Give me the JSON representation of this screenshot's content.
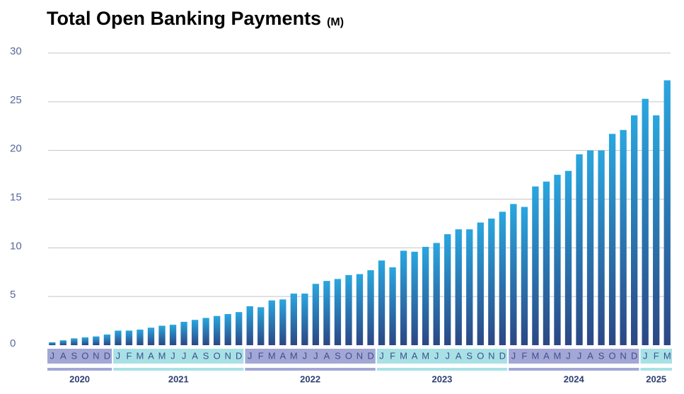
{
  "chart_data": {
    "type": "bar",
    "title": "Total Open Banking Payments",
    "unit": "(M)",
    "categories": [
      "J",
      "A",
      "S",
      "O",
      "N",
      "D",
      "J",
      "F",
      "M",
      "A",
      "M",
      "J",
      "J",
      "A",
      "S",
      "O",
      "N",
      "D",
      "J",
      "F",
      "M",
      "A",
      "M",
      "J",
      "J",
      "A",
      "S",
      "O",
      "N",
      "D",
      "J",
      "F",
      "M",
      "A",
      "M",
      "J",
      "J",
      "A",
      "S",
      "O",
      "N",
      "D",
      "J",
      "F",
      "M",
      "A",
      "M",
      "J",
      "J",
      "A",
      "S",
      "O",
      "N",
      "D",
      "J",
      "F",
      "M"
    ],
    "values": [
      0.3,
      0.5,
      0.7,
      0.8,
      0.9,
      1.1,
      1.5,
      1.5,
      1.6,
      1.8,
      2.0,
      2.1,
      2.4,
      2.6,
      2.8,
      3.0,
      3.2,
      3.4,
      4.0,
      3.9,
      4.6,
      4.7,
      5.3,
      5.3,
      6.3,
      6.6,
      6.8,
      7.2,
      7.3,
      7.7,
      8.7,
      8.0,
      9.7,
      9.6,
      10.1,
      10.5,
      11.4,
      11.9,
      11.9,
      12.6,
      13.0,
      13.7,
      14.5,
      14.2,
      16.3,
      16.8,
      17.5,
      17.9,
      19.6,
      20.0,
      20.0,
      21.7,
      22.1,
      23.6,
      25.3,
      23.6,
      27.2
    ],
    "years": [
      "2020",
      "2021",
      "2022",
      "2023",
      "2024",
      "2025"
    ],
    "color_bottom": "#2b4784",
    "color_top": "#2aa6df",
    "band_colors": [
      "#a3a7d6",
      "#a8e1e5"
    ],
    "ylim": [
      0,
      30
    ],
    "yticks": [
      0,
      5,
      10,
      15,
      20,
      25,
      30
    ],
    "grid": true
  }
}
